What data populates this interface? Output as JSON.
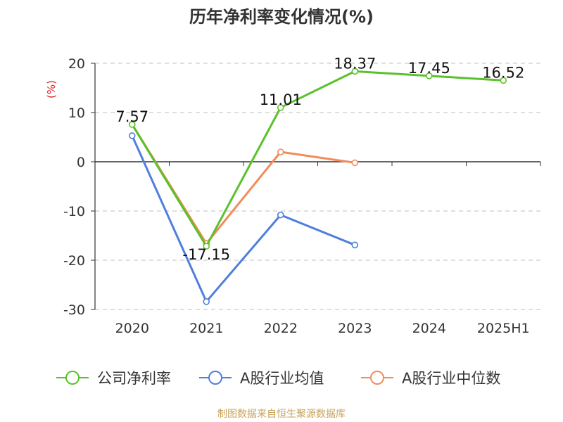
{
  "title": "历年净利率变化情况(%)",
  "source": "制图数据来自恒生聚源数据库",
  "chart_data": {
    "type": "line",
    "title": "历年净利率变化情况(%)",
    "unit_label": "(%)",
    "categories": [
      "2020",
      "2021",
      "2022",
      "2023",
      "2024",
      "2025H1"
    ],
    "ylim": [
      -30,
      20
    ],
    "yticks": [
      20,
      10,
      0,
      -10,
      -20,
      -30
    ],
    "grid": true,
    "legend_position": "bottom",
    "series": [
      {
        "name": "公司净利率",
        "color": "#5bc12b",
        "values": [
          7.57,
          -17.15,
          11.01,
          18.37,
          17.45,
          16.52
        ],
        "labels": [
          "7.57",
          "-17.15",
          "11.01",
          "18.37",
          "17.45",
          "16.52"
        ]
      },
      {
        "name": "A股行业均值",
        "color": "#4f7fdc",
        "values": [
          5.3,
          -28.4,
          -10.8,
          -16.9,
          null,
          null
        ]
      },
      {
        "name": "A股行业中位数",
        "color": "#f28c5a",
        "values": [
          7.6,
          -16.6,
          2.0,
          -0.2,
          null,
          null
        ]
      }
    ]
  }
}
